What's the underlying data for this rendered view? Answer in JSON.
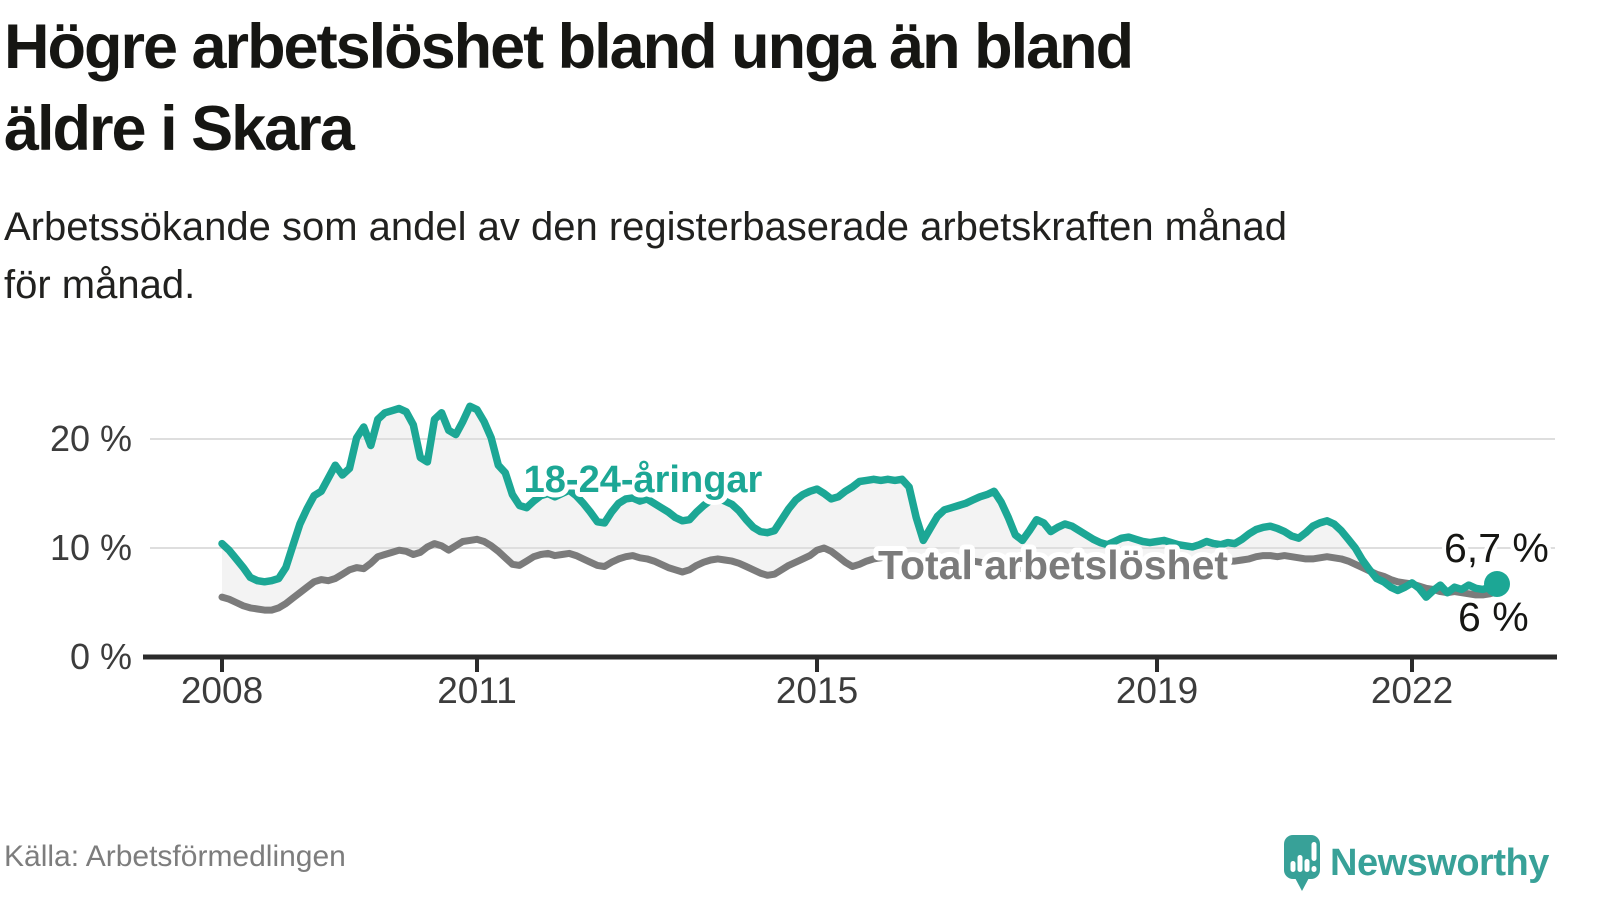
{
  "title": {
    "line1": "Högre arbetslöshet bland unga än bland",
    "line2": "äldre i Skara"
  },
  "subtitle": {
    "line1": "Arbetssökande som andel av den registerbaserade arbetskraften månad",
    "line2": "för månad."
  },
  "source": "Källa: Arbetsförmedlingen",
  "logo": {
    "text": "Newsworthy"
  },
  "colors": {
    "young_line": "#1ca795",
    "total_line": "#7b7b7b",
    "area_fill": "#f3f3f3",
    "gridline": "#dedede",
    "axis": "#2b2b2b",
    "tick_text": "#3c3c3c",
    "end_label_text": "#161613",
    "logo_teal": "#38a198"
  },
  "chart_data": {
    "type": "line",
    "unit": "%",
    "x_range": [
      "2008-01",
      "2023-01"
    ],
    "months_per_point": 1,
    "ylim": [
      0,
      24
    ],
    "grid_values": [
      10,
      20
    ],
    "legend_position": "inline-labels",
    "y_ticks": [
      {
        "value": 0,
        "label": "0 %"
      },
      {
        "value": 10,
        "label": "10 %"
      },
      {
        "value": 20,
        "label": "20 %"
      }
    ],
    "x_ticks": [
      {
        "month_index": 0,
        "label": "2008"
      },
      {
        "month_index": 36,
        "label": "2011"
      },
      {
        "month_index": 84,
        "label": "2015"
      },
      {
        "month_index": 132,
        "label": "2019"
      },
      {
        "month_index": 168,
        "label": "2022"
      }
    ],
    "series": [
      {
        "name": "18-24-åringar",
        "end_label": "6,7 %",
        "end_value": 6.7,
        "values": [
          10.4,
          9.8,
          9.0,
          8.2,
          7.3,
          7.0,
          6.9,
          7.0,
          7.2,
          8.2,
          10.2,
          12.2,
          13.6,
          14.8,
          15.2,
          16.4,
          17.6,
          16.7,
          17.3,
          20.1,
          21.1,
          19.4,
          21.8,
          22.4,
          22.6,
          22.8,
          22.5,
          21.3,
          18.3,
          17.9,
          21.8,
          22.4,
          20.8,
          20.4,
          21.6,
          23.0,
          22.7,
          21.6,
          20.1,
          17.6,
          16.9,
          14.9,
          13.9,
          13.7,
          14.3,
          14.8,
          15.0,
          14.7,
          15.0,
          15.3,
          14.8,
          14.1,
          13.3,
          12.4,
          12.3,
          13.3,
          14.1,
          14.5,
          14.6,
          14.3,
          14.5,
          14.1,
          13.7,
          13.3,
          12.8,
          12.5,
          12.6,
          13.3,
          13.9,
          14.4,
          14.6,
          14.3,
          14.0,
          13.4,
          12.6,
          11.9,
          11.5,
          11.4,
          11.6,
          12.6,
          13.6,
          14.4,
          14.9,
          15.2,
          15.4,
          15.0,
          14.5,
          14.7,
          15.2,
          15.6,
          16.1,
          16.2,
          16.3,
          16.2,
          16.3,
          16.2,
          16.3,
          15.6,
          12.8,
          10.7,
          11.8,
          12.9,
          13.5,
          13.7,
          13.9,
          14.1,
          14.4,
          14.7,
          14.9,
          15.2,
          14.2,
          12.8,
          11.2,
          10.7,
          11.6,
          12.6,
          12.3,
          11.5,
          11.9,
          12.2,
          12.0,
          11.6,
          11.2,
          10.8,
          10.5,
          10.3,
          10.6,
          10.9,
          11.0,
          10.8,
          10.6,
          10.5,
          10.6,
          10.7,
          10.5,
          10.3,
          10.2,
          10.1,
          10.3,
          10.6,
          10.4,
          10.3,
          10.5,
          10.4,
          10.8,
          11.3,
          11.7,
          11.9,
          12.0,
          11.8,
          11.5,
          11.1,
          10.9,
          11.4,
          12.0,
          12.3,
          12.5,
          12.2,
          11.6,
          10.8,
          10.0,
          8.9,
          8.0,
          7.2,
          6.9,
          6.4,
          6.1,
          6.4,
          6.8,
          6.3,
          5.5,
          6.1,
          6.6,
          5.9,
          6.4,
          6.2,
          6.6,
          6.3,
          6.2,
          6.4,
          6.7
        ]
      },
      {
        "name": "Total arbetslöshet",
        "end_label": "6 %",
        "end_value": 6.0,
        "values": [
          5.5,
          5.3,
          5.0,
          4.7,
          4.5,
          4.4,
          4.3,
          4.3,
          4.5,
          4.9,
          5.4,
          5.9,
          6.4,
          6.9,
          7.1,
          7.0,
          7.2,
          7.6,
          8.0,
          8.2,
          8.1,
          8.6,
          9.2,
          9.4,
          9.6,
          9.8,
          9.7,
          9.4,
          9.6,
          10.1,
          10.4,
          10.2,
          9.8,
          10.2,
          10.6,
          10.7,
          10.8,
          10.6,
          10.2,
          9.7,
          9.1,
          8.5,
          8.4,
          8.8,
          9.2,
          9.4,
          9.5,
          9.3,
          9.4,
          9.5,
          9.3,
          9.0,
          8.7,
          8.4,
          8.3,
          8.7,
          9.0,
          9.2,
          9.3,
          9.1,
          9.0,
          8.8,
          8.5,
          8.2,
          8.0,
          7.8,
          8.0,
          8.4,
          8.7,
          8.9,
          9.0,
          8.9,
          8.8,
          8.6,
          8.3,
          8.0,
          7.7,
          7.5,
          7.6,
          8.0,
          8.4,
          8.7,
          9.0,
          9.3,
          9.8,
          10.0,
          9.7,
          9.2,
          8.7,
          8.3,
          8.5,
          8.8,
          9.0,
          9.1,
          9.2,
          9.3,
          9.2,
          9.1,
          8.9,
          8.7,
          8.5,
          8.3,
          8.2,
          8.5,
          8.7,
          8.8,
          8.8,
          8.7,
          8.6,
          8.5,
          8.4,
          8.3,
          8.2,
          8.1,
          8.2,
          8.4,
          8.6,
          8.7,
          8.7,
          8.6,
          8.5,
          8.4,
          8.2,
          8.0,
          7.9,
          7.8,
          7.9,
          8.1,
          8.3,
          8.5,
          8.6,
          8.7,
          8.7,
          8.6,
          8.5,
          8.4,
          8.3,
          8.2,
          8.3,
          8.5,
          8.6,
          8.7,
          8.8,
          8.8,
          8.9,
          9.0,
          9.2,
          9.3,
          9.3,
          9.2,
          9.3,
          9.2,
          9.1,
          9.0,
          9.0,
          9.1,
          9.2,
          9.1,
          9.0,
          8.8,
          8.5,
          8.2,
          7.9,
          7.6,
          7.4,
          7.1,
          6.9,
          6.8,
          6.7,
          6.5,
          6.3,
          6.2,
          6.0,
          5.9,
          6.0,
          5.9,
          5.8,
          5.7,
          5.7,
          5.8,
          6.0
        ]
      }
    ]
  }
}
